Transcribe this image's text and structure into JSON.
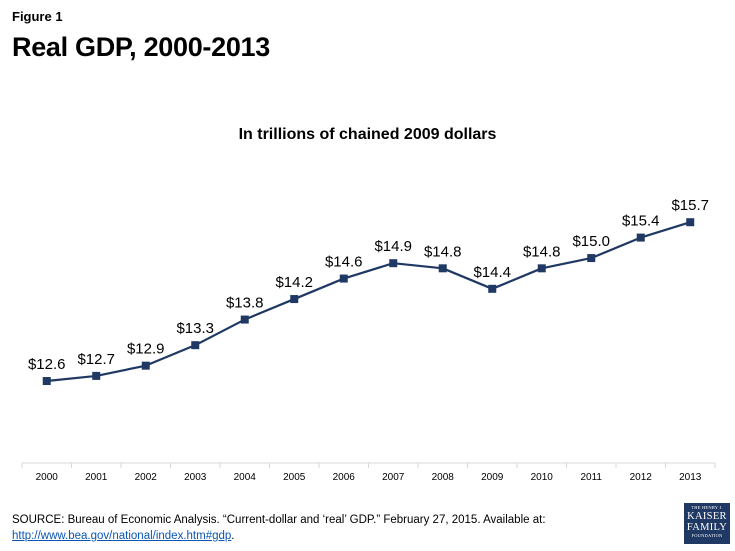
{
  "figure_label": "Figure 1",
  "title": "Real GDP, 2000-2013",
  "chart_data": {
    "type": "line",
    "subtitle": "In trillions of chained 2009 dollars",
    "categories": [
      "2000",
      "2001",
      "2002",
      "2003",
      "2004",
      "2005",
      "2006",
      "2007",
      "2008",
      "2009",
      "2010",
      "2011",
      "2012",
      "2013"
    ],
    "series": [
      {
        "values": [
          12.6,
          12.7,
          12.9,
          13.3,
          13.8,
          14.2,
          14.6,
          14.9,
          14.8,
          14.4,
          14.8,
          15.0,
          15.4,
          15.7
        ],
        "data_labels": [
          "$12.6",
          "$12.7",
          "$12.9",
          "$13.3",
          "$13.8",
          "$14.2",
          "$14.6",
          "$14.9",
          "$14.8",
          "$14.4",
          "$14.8",
          "$15.0",
          "$15.4",
          "$15.7"
        ],
        "color": "#1f3864"
      }
    ],
    "ylim": [
      11.0,
      17.5
    ],
    "grid": false,
    "legend": "none",
    "marker": "square"
  },
  "source": {
    "text": "SOURCE: Bureau of Economic Analysis. “Current-dollar and ‘real’ GDP.” February 27, 2015. Available at:",
    "link": "http://www.bea.gov/national/index.htm#gdp",
    "end": "."
  },
  "logo": {
    "line1": "THE HENRY J.",
    "line2": "KAISER",
    "line3": "FAMILY",
    "line4": "FOUNDATION"
  },
  "colors": {
    "series": "#1f3864",
    "axis": "#d9d9d9",
    "link": "#0a56b5"
  }
}
